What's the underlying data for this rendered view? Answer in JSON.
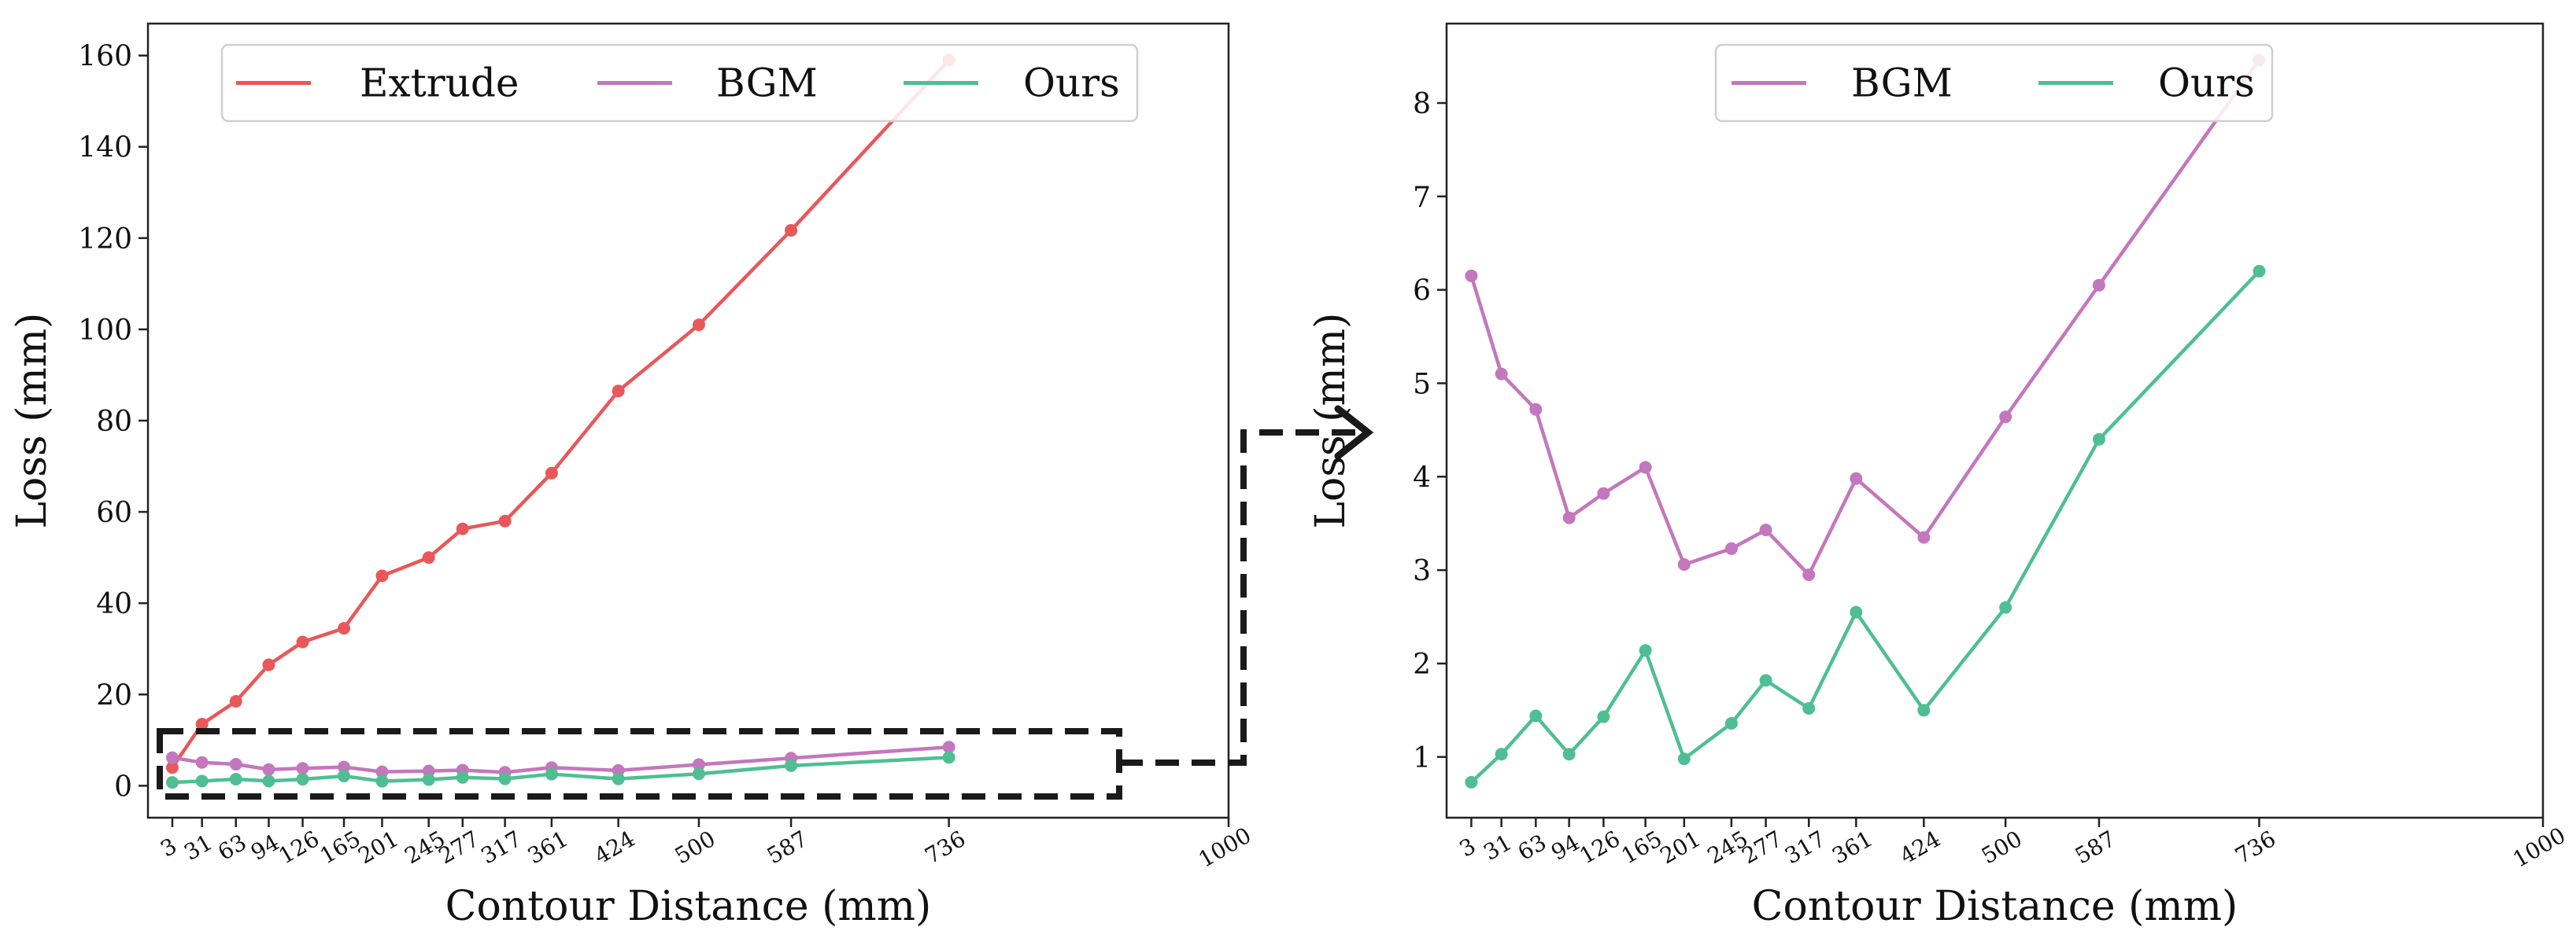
{
  "chart_data": [
    {
      "type": "line",
      "title": "",
      "xlabel": "Contour Distance (mm)",
      "ylabel": "Loss (mm)",
      "x_tick_labels": [
        "3",
        "31",
        "63",
        "94",
        "126",
        "165",
        "201",
        "245",
        "277",
        "317",
        "361",
        "424",
        "500",
        "587",
        "736",
        "1000"
      ],
      "xlim": [
        -20,
        1000
      ],
      "ylim": [
        -7,
        167
      ],
      "y_ticks": [
        0,
        20,
        40,
        60,
        80,
        100,
        120,
        140,
        160
      ],
      "grid": false,
      "legend": "top-center",
      "x": [
        3,
        31,
        63,
        94,
        126,
        165,
        201,
        245,
        277,
        317,
        361,
        424,
        500,
        587,
        736
      ],
      "series": [
        {
          "name": "Extrude",
          "color": "#e8585a",
          "values": [
            4,
            13.5,
            18.5,
            26.5,
            31.5,
            34.5,
            46,
            50,
            56.3,
            58,
            68.5,
            86.5,
            101,
            121.7,
            159
          ]
        },
        {
          "name": "BGM",
          "color": "#c377bd",
          "values": [
            6.15,
            5.1,
            4.72,
            3.56,
            3.82,
            4.1,
            3.06,
            3.23,
            3.43,
            2.95,
            3.98,
            3.35,
            4.64,
            6.05,
            8.46
          ]
        },
        {
          "name": "Ours",
          "color": "#4fbf93",
          "values": [
            0.73,
            1.03,
            1.44,
            1.03,
            1.43,
            2.14,
            0.98,
            1.36,
            1.82,
            1.52,
            2.55,
            1.5,
            2.6,
            4.4,
            6.2
          ]
        }
      ],
      "annotations": [
        "dashed zoom box around BGM and Ours curves, arrow pointing to right panel"
      ]
    },
    {
      "type": "line",
      "title": "",
      "xlabel": "Contour Distance (mm)",
      "ylabel": "Loss (mm)",
      "x_tick_labels": [
        "3",
        "31",
        "63",
        "94",
        "126",
        "165",
        "201",
        "245",
        "277",
        "317",
        "361",
        "424",
        "500",
        "587",
        "736",
        "1000"
      ],
      "xlim": [
        -20,
        1000
      ],
      "ylim": [
        0.35,
        8.85
      ],
      "y_ticks": [
        1,
        2,
        3,
        4,
        5,
        6,
        7,
        8
      ],
      "grid": false,
      "legend": "top-center",
      "x": [
        3,
        31,
        63,
        94,
        126,
        165,
        201,
        245,
        277,
        317,
        361,
        424,
        500,
        587,
        736
      ],
      "series": [
        {
          "name": "BGM",
          "color": "#c377bd",
          "values": [
            6.15,
            5.1,
            4.72,
            3.56,
            3.82,
            4.1,
            3.06,
            3.23,
            3.43,
            2.95,
            3.98,
            3.35,
            4.64,
            6.05,
            8.46
          ]
        },
        {
          "name": "Ours",
          "color": "#4fbf93",
          "values": [
            0.73,
            1.03,
            1.44,
            1.03,
            1.43,
            2.14,
            0.98,
            1.36,
            1.82,
            1.52,
            2.55,
            1.5,
            2.6,
            4.4,
            6.2
          ]
        }
      ]
    }
  ]
}
